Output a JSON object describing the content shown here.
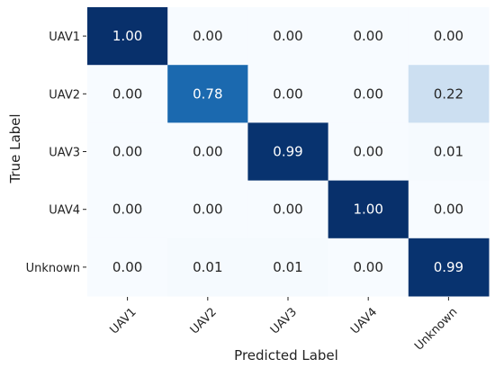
{
  "chart_data": {
    "type": "heatmap",
    "title": "",
    "xlabel": "Predicted Label",
    "ylabel": "True Label",
    "x_categories": [
      "UAV1",
      "UAV2",
      "UAV3",
      "UAV4",
      "Unknown"
    ],
    "y_categories": [
      "UAV1",
      "UAV2",
      "UAV3",
      "UAV4",
      "Unknown"
    ],
    "values": [
      [
        1.0,
        0.0,
        0.0,
        0.0,
        0.0
      ],
      [
        0.0,
        0.78,
        0.0,
        0.0,
        0.22
      ],
      [
        0.0,
        0.0,
        0.99,
        0.0,
        0.01
      ],
      [
        0.0,
        0.0,
        0.0,
        1.0,
        0.0
      ],
      [
        0.0,
        0.01,
        0.01,
        0.0,
        0.99
      ]
    ],
    "value_format": "0.00",
    "range": [
      0,
      1
    ],
    "colormap": "Blues",
    "low_color": "#f7fbff",
    "high_color": "#08306b",
    "colorbar": false,
    "grid": false,
    "xtick_rotation": 45
  }
}
